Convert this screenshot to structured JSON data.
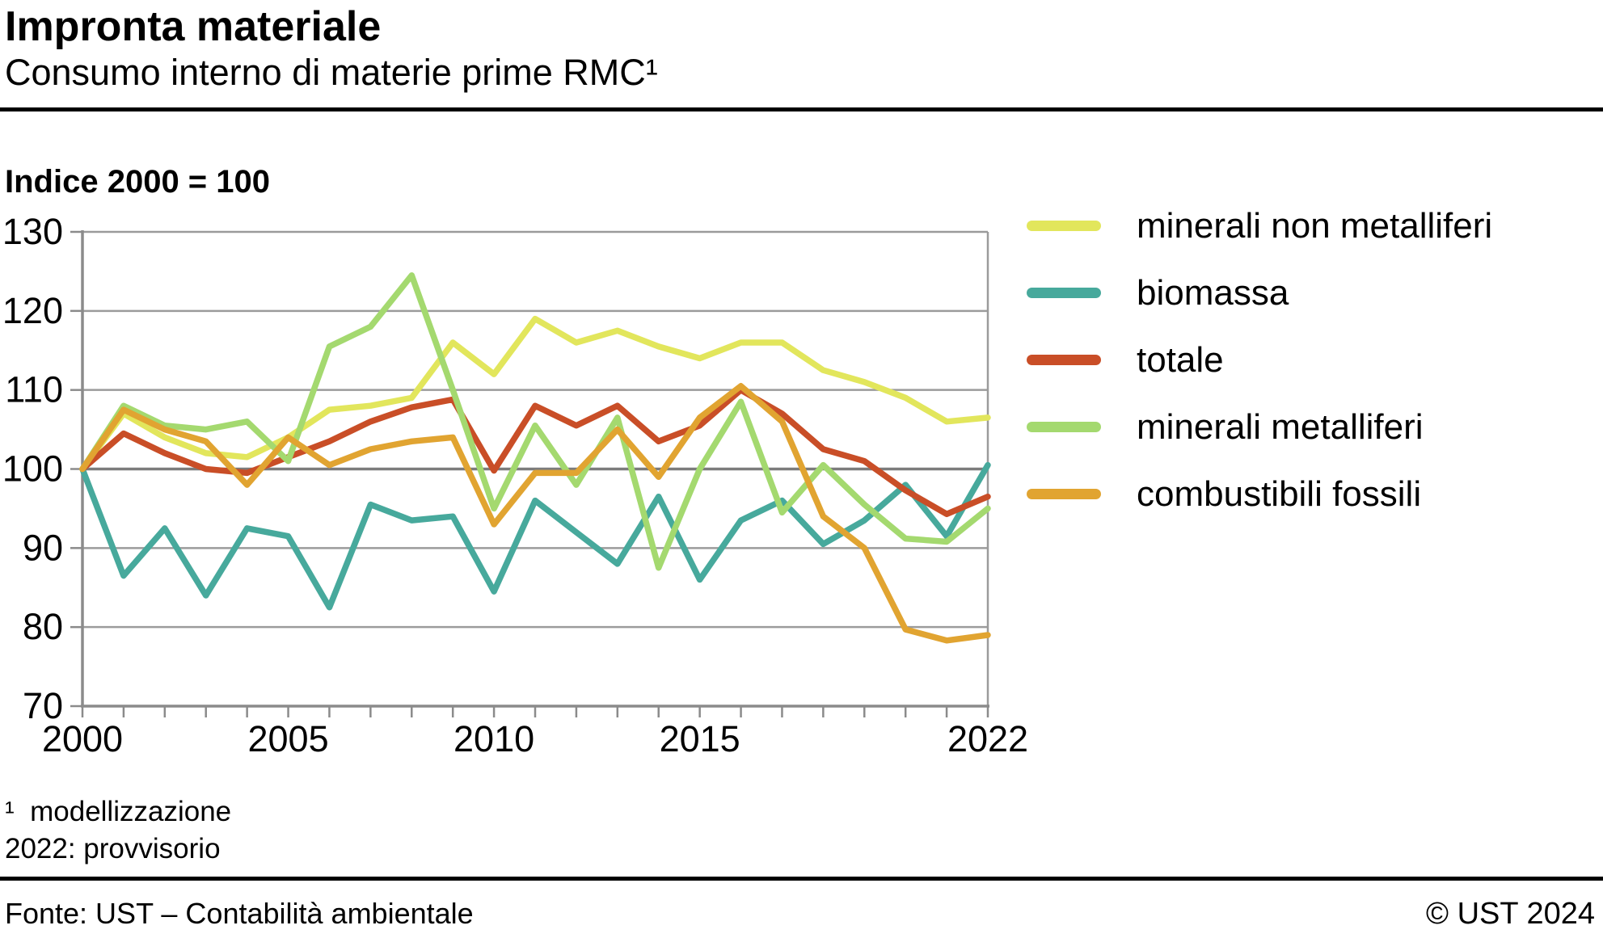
{
  "header": {
    "title": "Impronta materiale",
    "subtitle": "Consumo interno di materie prime RMC¹"
  },
  "chart_data": {
    "type": "line",
    "title": "Indice 2000 = 100",
    "xlabel": "",
    "ylabel": "Indice 2000 = 100",
    "xlim": [
      2000,
      2022
    ],
    "ylim": [
      70,
      130
    ],
    "y_ticks": [
      70,
      80,
      90,
      100,
      110,
      120,
      130
    ],
    "x_tick_labels": [
      2000,
      2005,
      2010,
      2015,
      2022
    ],
    "baseline_value": 100,
    "grid": true,
    "legend_position": "right",
    "x": [
      2000,
      2001,
      2002,
      2003,
      2004,
      2005,
      2006,
      2007,
      2008,
      2009,
      2010,
      2011,
      2012,
      2013,
      2014,
      2015,
      2016,
      2017,
      2018,
      2019,
      2020,
      2021,
      2022
    ],
    "series": [
      {
        "name": "minerali non metalliferi",
        "color": "#e2e65c",
        "values": [
          100,
          107,
          104,
          102,
          101.5,
          104,
          107.5,
          108,
          109,
          116,
          112,
          119,
          116,
          117.5,
          115.5,
          114,
          116,
          116,
          112.5,
          111,
          109,
          106,
          106.5
        ]
      },
      {
        "name": "biomassa",
        "color": "#47a99c",
        "values": [
          100,
          86.5,
          92.5,
          84,
          92.5,
          91.5,
          82.5,
          95.5,
          93.5,
          94,
          84.5,
          96,
          92,
          88,
          96.5,
          86,
          93.5,
          96,
          90.5,
          93.5,
          98,
          91.5,
          100.5
        ]
      },
      {
        "name": "totale",
        "color": "#c94e27",
        "values": [
          100,
          104.5,
          102,
          100,
          99.5,
          101.5,
          103.5,
          106,
          107.8,
          108.8,
          99.8,
          108,
          105.5,
          108,
          103.5,
          105.5,
          110,
          107,
          102.5,
          101,
          97.3,
          94.3,
          96.5
        ]
      },
      {
        "name": "minerali metalliferi",
        "color": "#a4d96f",
        "values": [
          100,
          108,
          105.5,
          105,
          106,
          101,
          115.5,
          118,
          124.5,
          110,
          95,
          105.5,
          98,
          106.5,
          87.5,
          100,
          108.5,
          94.5,
          100.5,
          95.5,
          91.2,
          90.8,
          95
        ]
      },
      {
        "name": "combustibili fossili",
        "color": "#e1a431",
        "values": [
          100,
          107.5,
          105,
          103.5,
          98,
          104,
          100.5,
          102.5,
          103.5,
          104,
          93,
          99.5,
          99.5,
          105,
          99,
          106.5,
          110.5,
          106,
          94,
          90,
          79.7,
          78.3,
          79
        ]
      }
    ]
  },
  "footnotes": {
    "line1": "¹  modellizzazione",
    "line2": "2022: provvisorio"
  },
  "footer": {
    "source": "Fonte: UST – Contabilità ambientale",
    "copyright": "© UST 2024"
  },
  "colors": {
    "grid": "#9b9b9b",
    "grid_emphasis": "#7c7c7c",
    "axis": "#8b8b8b",
    "text": "#000000",
    "rule": "#000000"
  }
}
